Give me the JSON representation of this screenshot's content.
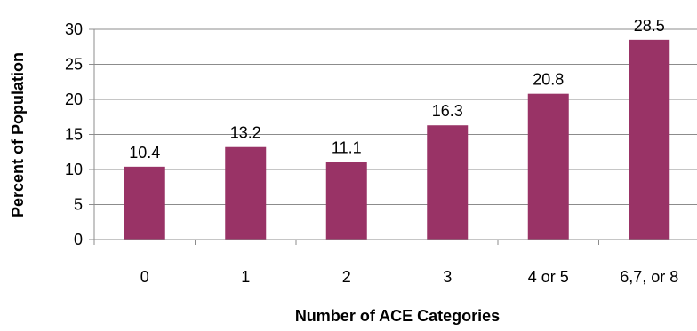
{
  "chart_data": {
    "type": "bar",
    "categories": [
      "0",
      "1",
      "2",
      "3",
      "4 or 5",
      "6,7, or 8"
    ],
    "values": [
      10.4,
      13.2,
      11.1,
      16.3,
      20.8,
      28.5
    ],
    "value_labels": [
      "10.4",
      "13.2",
      "11.1",
      "16.3",
      "20.8",
      "28.5"
    ],
    "title": "",
    "xlabel": "Number of ACE Categories",
    "ylabel": "Percent of Population",
    "ylim": [
      0,
      30
    ],
    "yticks": [
      0,
      5,
      10,
      15,
      20,
      25,
      30
    ],
    "ytick_labels": [
      "0",
      "5",
      "10",
      "15",
      "20",
      "25",
      "30"
    ],
    "grid": true,
    "legend": "none",
    "bar_color": "#993366"
  }
}
